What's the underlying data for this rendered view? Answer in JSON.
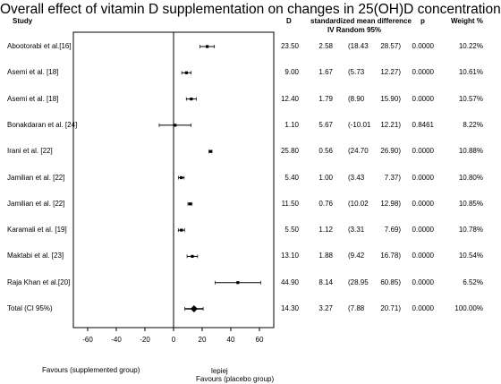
{
  "title": "Overall effect of vitamin D supplementation on changes in 25(OH)D concentration",
  "headers": {
    "study": "Study",
    "d": "D",
    "smd": "standardized mean difference",
    "method": "IV Random 95%",
    "p": "p",
    "weight": "Weight %"
  },
  "chart_data": {
    "type": "forest",
    "xlim": [
      -70,
      70
    ],
    "x_ticks": [
      -60,
      -40,
      -20,
      0,
      20,
      40,
      60
    ],
    "rows": [
      {
        "study": "Abootorabi et al.[16]",
        "d": "23.50",
        "smd": "2.58",
        "ci_low": "(18.43",
        "ci_high": "28.57)",
        "p": "0.0000",
        "weight": "10.22%",
        "est": 23.5,
        "lo": 18.43,
        "hi": 28.57
      },
      {
        "study": "Asemi et al. [18]",
        "d": "9.00",
        "smd": "1.67",
        "ci_low": "(5.73",
        "ci_high": "12.27)",
        "p": "0.0000",
        "weight": "10.61%",
        "est": 9.0,
        "lo": 5.73,
        "hi": 12.27
      },
      {
        "study": "Asemi et al. [18]",
        "d": "12.40",
        "smd": "1.79",
        "ci_low": "(8.90",
        "ci_high": "15.90)",
        "p": "0.0000",
        "weight": "10.57%",
        "est": 12.4,
        "lo": 8.9,
        "hi": 15.9
      },
      {
        "study": "Bonakdaran et al. [24]",
        "d": "1.10",
        "smd": "5.67",
        "ci_low": "(-10.01",
        "ci_high": "12.21)",
        "p": "0.8461",
        "weight": "8.22%",
        "est": 1.1,
        "lo": -10.01,
        "hi": 12.21
      },
      {
        "study": "Irani et al. [22]",
        "d": "25.80",
        "smd": "0.56",
        "ci_low": "(24.70",
        "ci_high": "26.90)",
        "p": "0.0000",
        "weight": "10.88%",
        "est": 25.8,
        "lo": 24.7,
        "hi": 26.9
      },
      {
        "study": "Jamilian et al. [22]",
        "d": "5.40",
        "smd": "1.00",
        "ci_low": "(3.43",
        "ci_high": "7.37)",
        "p": "0.0000",
        "weight": "10.80%",
        "est": 5.4,
        "lo": 3.43,
        "hi": 7.37
      },
      {
        "study": "Jamilian et al. [22]",
        "d": "11.50",
        "smd": "0.76",
        "ci_low": "(10.02",
        "ci_high": "12.98)",
        "p": "0.0000",
        "weight": "10.85%",
        "est": 11.5,
        "lo": 10.02,
        "hi": 12.98
      },
      {
        "study": "Karamali et al. [19]",
        "d": "5.50",
        "smd": "1.12",
        "ci_low": "(3.31",
        "ci_high": "7.69)",
        "p": "0.0000",
        "weight": "10.78%",
        "est": 5.5,
        "lo": 3.31,
        "hi": 7.69
      },
      {
        "study": "Maktabi et al. [23]",
        "d": "13.10",
        "smd": "1.88",
        "ci_low": "(9.42",
        "ci_high": "16.78)",
        "p": "0.0000",
        "weight": "10.54%",
        "est": 13.1,
        "lo": 9.42,
        "hi": 16.78
      },
      {
        "study": "Raja Khan et al.[20]",
        "d": "44.90",
        "smd": "8.14",
        "ci_low": "(28.95",
        "ci_high": "60.85)",
        "p": "0.0000",
        "weight": "6.52%",
        "est": 44.9,
        "lo": 28.95,
        "hi": 60.85
      }
    ],
    "total": {
      "study": "Total (CI 95%)",
      "d": "14.30",
      "smd": "3.27",
      "ci_low": "(7.88",
      "ci_high": "20.71)",
      "p": "0.0000",
      "weight": "100.00%",
      "est": 14.3,
      "lo": 7.88,
      "hi": 20.71
    }
  },
  "footer": {
    "left": "Favours (supplemented group)",
    "center": "lepiej",
    "right": "Favours (placebo group)"
  }
}
